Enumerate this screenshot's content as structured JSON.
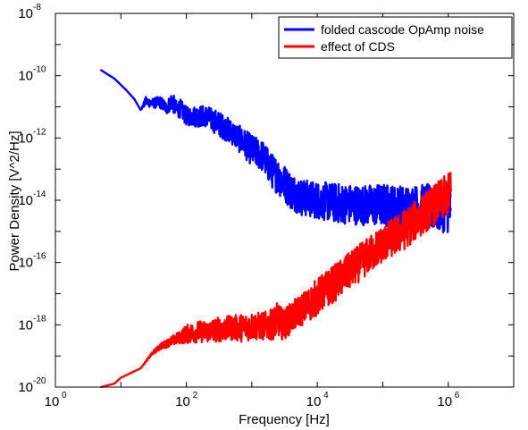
{
  "chart_data": {
    "type": "line",
    "title": "",
    "xlabel": "Frequency [Hz]",
    "ylabel": "Power Density [V^2/Hz]",
    "xscale": "log",
    "yscale": "log",
    "xlim": [
      1,
      10000000
    ],
    "ylim": [
      1e-20,
      1e-08
    ],
    "grid": false,
    "legend_position": "top-right",
    "x_ticks": [
      {
        "base": "10",
        "exp": "0",
        "value": 1
      },
      {
        "base": "10",
        "exp": "2",
        "value": 100
      },
      {
        "base": "10",
        "exp": "4",
        "value": 10000
      },
      {
        "base": "10",
        "exp": "6",
        "value": 1000000
      }
    ],
    "y_ticks": [
      {
        "base": "10",
        "exp": "-8",
        "value": 1e-08
      },
      {
        "base": "10",
        "exp": "-10",
        "value": 1e-10
      },
      {
        "base": "10",
        "exp": "-12",
        "value": 1e-12
      },
      {
        "base": "10",
        "exp": "-14",
        "value": 1e-14
      },
      {
        "base": "10",
        "exp": "-16",
        "value": 1e-16
      },
      {
        "base": "10",
        "exp": "-18",
        "value": 1e-18
      },
      {
        "base": "10",
        "exp": "-20",
        "value": 1e-20
      }
    ],
    "series": [
      {
        "name": "folded cascode OpAmp noise",
        "color": "#0000ff",
        "x": [
          5,
          8,
          12,
          16,
          20,
          24,
          30,
          40,
          50,
          60,
          70,
          80,
          100,
          150,
          200,
          300,
          500,
          700,
          1000,
          1500,
          2000,
          2500,
          3000,
          4000,
          6000,
          10000,
          20000,
          50000,
          100000,
          200000,
          500000,
          1000000,
          1100000
        ],
        "y": [
          1.5e-10,
          8e-11,
          3.5e-11,
          1.8e-11,
          8e-12,
          1.5e-11,
          1.3e-11,
          1.4e-11,
          9e-12,
          1.6e-11,
          8e-12,
          9e-12,
          5e-12,
          5e-12,
          5e-12,
          3e-12,
          1.5e-12,
          8e-13,
          4e-13,
          2.5e-13,
          9e-14,
          6e-14,
          4e-14,
          2e-14,
          1.2e-14,
          1e-14,
          8e-15,
          7e-15,
          7e-15,
          6e-15,
          6e-15,
          5e-15,
          5e-15
        ],
        "spread_decades": [
          0,
          0,
          0,
          0,
          0,
          0.15,
          0.15,
          0.2,
          0.2,
          0.3,
          0.3,
          0.3,
          0.3,
          0.35,
          0.35,
          0.4,
          0.4,
          0.45,
          0.5,
          0.5,
          0.55,
          0.6,
          0.6,
          0.6,
          0.6,
          0.6,
          0.65,
          0.65,
          0.7,
          0.7,
          0.75,
          0.75,
          0.75
        ]
      },
      {
        "name": "effect of CDS",
        "color": "#ff0000",
        "x": [
          5,
          8,
          10,
          15,
          20,
          30,
          40,
          60,
          80,
          100,
          150,
          200,
          300,
          500,
          700,
          1000,
          1500,
          2000,
          2500,
          3000,
          5000,
          7000,
          10000,
          20000,
          50000,
          100000,
          200000,
          500000,
          1000000,
          1100000
        ],
        "y": [
          1e-20,
          1.3e-20,
          2e-20,
          3e-20,
          4e-20,
          1.2e-19,
          2e-19,
          3e-19,
          4e-19,
          5e-19,
          6e-19,
          6e-19,
          7e-19,
          8e-19,
          8e-19,
          9e-19,
          9e-19,
          1e-18,
          1.5e-18,
          1e-18,
          2.5e-18,
          4e-18,
          8e-18,
          2.5e-17,
          1.2e-16,
          4e-16,
          1e-15,
          5e-15,
          1.5e-14,
          2e-14
        ],
        "spread_decades": [
          0,
          0,
          0,
          0,
          0,
          0.05,
          0.1,
          0.15,
          0.2,
          0.3,
          0.35,
          0.35,
          0.4,
          0.4,
          0.45,
          0.45,
          0.45,
          0.5,
          0.55,
          0.5,
          0.5,
          0.55,
          0.6,
          0.6,
          0.6,
          0.6,
          0.65,
          0.65,
          0.7,
          0.7
        ]
      }
    ]
  }
}
